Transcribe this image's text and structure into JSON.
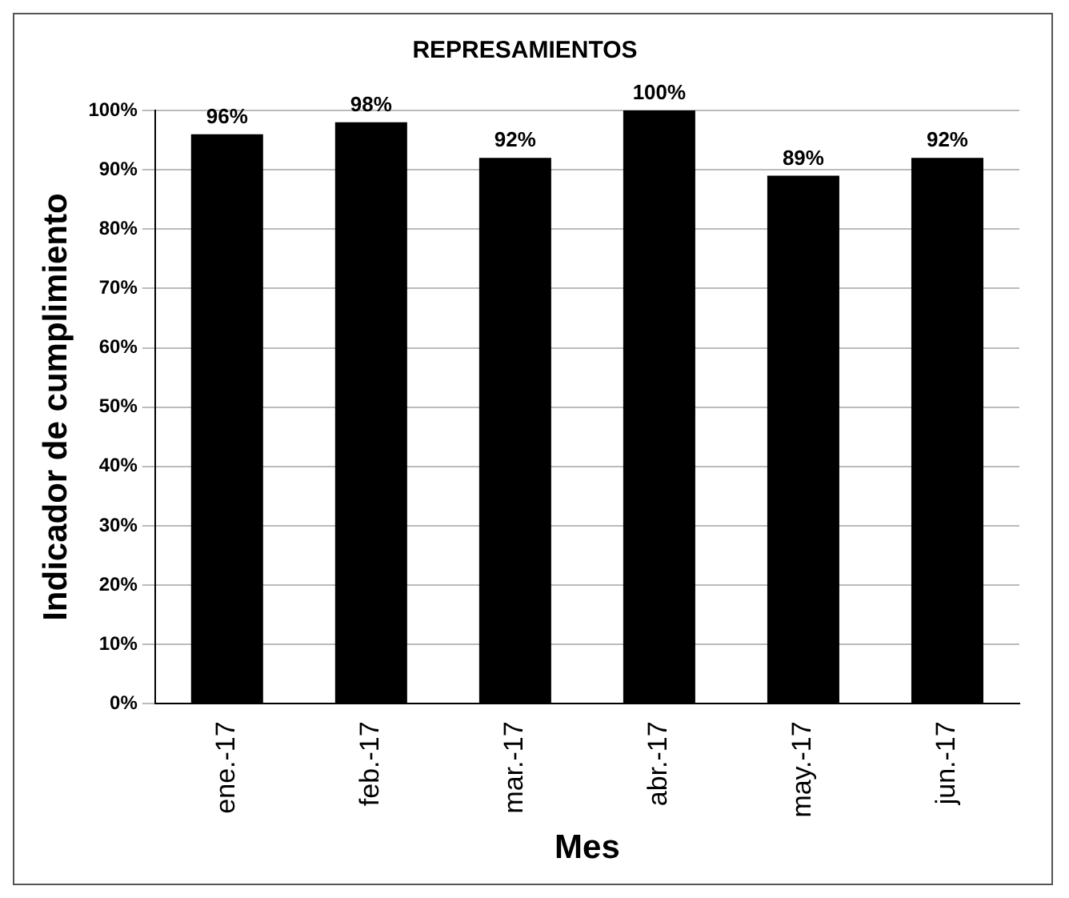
{
  "chart_data": {
    "type": "bar",
    "title": "REPRESAMIENTOS",
    "xlabel": "Mes",
    "ylabel": "Indicador de cumplimiento",
    "categories": [
      "ene.-17",
      "feb.-17",
      "mar.-17",
      "abr.-17",
      "may.-17",
      "jun.-17"
    ],
    "values": [
      96,
      98,
      92,
      100,
      89,
      92
    ],
    "value_labels": [
      "96%",
      "98%",
      "92%",
      "100%",
      "89%",
      "92%"
    ],
    "color": "#000000",
    "ylim": [
      0,
      100
    ],
    "yticks": [
      {
        "value": 0,
        "label": "0%"
      },
      {
        "value": 10,
        "label": "10%"
      },
      {
        "value": 20,
        "label": "20%"
      },
      {
        "value": 30,
        "label": "30%"
      },
      {
        "value": 40,
        "label": "40%"
      },
      {
        "value": 50,
        "label": "50%"
      },
      {
        "value": 60,
        "label": "60%"
      },
      {
        "value": 70,
        "label": "70%"
      },
      {
        "value": 80,
        "label": "80%"
      },
      {
        "value": 90,
        "label": "90%"
      },
      {
        "value": 100,
        "label": "100%"
      }
    ],
    "grid": "y"
  }
}
